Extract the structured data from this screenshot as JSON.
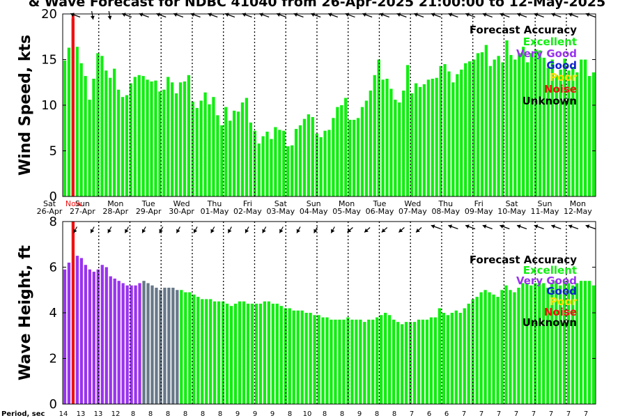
{
  "title": "& Wave Forecast for NDBC 41040 from 26-Apr-2025 21:00:00 to 12-May-2025",
  "colors": {
    "excellent": "#11ee11",
    "very_good": "#9933ee",
    "good": "#1122cc",
    "poor": "#ffdd00",
    "noise": "#ee1111",
    "unknown": "#000000",
    "slate": "#667788"
  },
  "legend": {
    "title": "Forecast Accuracy",
    "entries": [
      {
        "label": "Excellent",
        "color": "#11ee11"
      },
      {
        "label": "Very Good",
        "color": "#9933ee"
      },
      {
        "label": "Good",
        "color": "#1122cc"
      },
      {
        "label": "Poor",
        "color": "#ffdd00"
      },
      {
        "label": "Noise",
        "color": "#ee1111"
      },
      {
        "label": "Unknown",
        "color": "#000000"
      }
    ]
  },
  "day_labels": [
    {
      "day": "Sat",
      "date": "26-Apr"
    },
    {
      "day": "Sun",
      "date": "27-Apr"
    },
    {
      "day": "Mon",
      "date": "28-Apr"
    },
    {
      "day": "Tue",
      "date": "29-Apr"
    },
    {
      "day": "Wed",
      "date": "30-Apr"
    },
    {
      "day": "Thu",
      "date": "01-May"
    },
    {
      "day": "Fri",
      "date": "02-May"
    },
    {
      "day": "Sat",
      "date": "03-May"
    },
    {
      "day": "Sun",
      "date": "04-May"
    },
    {
      "day": "Mon",
      "date": "05-May"
    },
    {
      "day": "Tue",
      "date": "06-May"
    },
    {
      "day": "Wed",
      "date": "07-May"
    },
    {
      "day": "Thu",
      "date": "08-May"
    },
    {
      "day": "Fri",
      "date": "09-May"
    },
    {
      "day": "Sat",
      "date": "10-May"
    },
    {
      "day": "Sun",
      "date": "11-May"
    },
    {
      "day": "Mon",
      "date": "12-May"
    }
  ],
  "now_label": "Now",
  "period_label": "Period, sec",
  "period_values": [
    14,
    13,
    13,
    12,
    8,
    8,
    8,
    8,
    8,
    8,
    9,
    9,
    9,
    8,
    10,
    8,
    8,
    9,
    8,
    8,
    7,
    6,
    6,
    7,
    7,
    7,
    7,
    7,
    7,
    7,
    7
  ],
  "chart_data": [
    {
      "type": "bar",
      "ylabel": "Wind Speed, kts",
      "ylim": [
        0,
        20
      ],
      "yticks": [
        0,
        5,
        10,
        15,
        20
      ],
      "series": [
        {
          "values": [
            14.9,
            16.3,
            19.5,
            16.4,
            14.6,
            13.2,
            10.6,
            12.9,
            15.7,
            15.4,
            13.8,
            13.0,
            14.0,
            11.7,
            10.9,
            11.1,
            12.4,
            13.1,
            13.3,
            13.2,
            12.8,
            12.6,
            12.7,
            11.5,
            11.7,
            13.1,
            12.5,
            11.3,
            12.5,
            12.6,
            13.3,
            10.4,
            9.7,
            10.5,
            11.4,
            10.1,
            10.9,
            8.9,
            7.8,
            9.8,
            8.3,
            9.4,
            9.3,
            10.3,
            10.8,
            8.1,
            7.2,
            5.8,
            6.6,
            7.1,
            6.3,
            7.6,
            7.3,
            7.2,
            5.5,
            5.6,
            7.4,
            7.8,
            8.5,
            9.0,
            8.7,
            6.9,
            6.5,
            7.2,
            7.3,
            8.6,
            9.8,
            10.0,
            10.8,
            8.4,
            8.4,
            8.6,
            9.8,
            10.5,
            11.6,
            13.3,
            15.0,
            12.8,
            12.9,
            11.8,
            10.6,
            10.3,
            11.6,
            14.4,
            11.3,
            12.4,
            12.0,
            12.3,
            12.8,
            12.9,
            13.0,
            14.3,
            14.5,
            13.7,
            12.5,
            13.4,
            13.9,
            14.6,
            14.8,
            15.0,
            15.7,
            15.8,
            16.6,
            14.3,
            15.0,
            15.4,
            14.7,
            17.1,
            15.5,
            15.0,
            15.7,
            16.4,
            14.7,
            15.7,
            16.1,
            16.0,
            15.2,
            14.1,
            15.0,
            13.3,
            13.9,
            15.1,
            13.8,
            14.2,
            13.6,
            15.0,
            15.0,
            13.2,
            13.6
          ],
          "accuracy": [
            "excellent",
            "excellent",
            "noise"
          ]
        }
      ],
      "direction_arrows": "wind direction arrows along top of panel"
    },
    {
      "type": "bar",
      "ylabel": "Wave Height, ft",
      "ylim": [
        0,
        8
      ],
      "yticks": [
        0,
        2,
        4,
        6,
        8
      ],
      "series": [
        {
          "values": [
            5.9,
            6.2,
            8.0,
            6.5,
            6.4,
            6.1,
            5.9,
            5.8,
            5.9,
            6.1,
            6.0,
            5.6,
            5.5,
            5.4,
            5.3,
            5.2,
            5.2,
            5.2,
            5.3,
            5.4,
            5.3,
            5.2,
            5.1,
            5.0,
            5.1,
            5.1,
            5.1,
            5.0,
            5.0,
            4.9,
            4.9,
            4.8,
            4.7,
            4.6,
            4.6,
            4.6,
            4.5,
            4.5,
            4.5,
            4.4,
            4.3,
            4.4,
            4.5,
            4.5,
            4.4,
            4.4,
            4.4,
            4.4,
            4.5,
            4.5,
            4.4,
            4.4,
            4.3,
            4.2,
            4.2,
            4.1,
            4.1,
            4.1,
            4.0,
            4.0,
            3.9,
            3.9,
            3.8,
            3.8,
            3.7,
            3.7,
            3.7,
            3.7,
            3.8,
            3.7,
            3.7,
            3.7,
            3.6,
            3.7,
            3.7,
            3.8,
            3.9,
            4.0,
            3.9,
            3.7,
            3.6,
            3.5,
            3.6,
            3.6,
            3.6,
            3.7,
            3.7,
            3.7,
            3.8,
            3.8,
            4.2,
            4.0,
            3.9,
            4.0,
            4.1,
            4.0,
            4.2,
            4.4,
            4.6,
            4.7,
            4.9,
            5.0,
            4.9,
            4.8,
            4.7,
            5.0,
            5.2,
            5.0,
            4.9,
            5.1,
            5.3,
            5.3,
            5.2,
            5.3,
            5.4,
            5.3,
            5.1,
            5.3,
            5.4,
            5.2,
            5.4,
            5.3,
            5.2,
            5.3,
            5.4,
            5.4,
            5.4,
            5.2
          ]
        }
      ]
    }
  ]
}
